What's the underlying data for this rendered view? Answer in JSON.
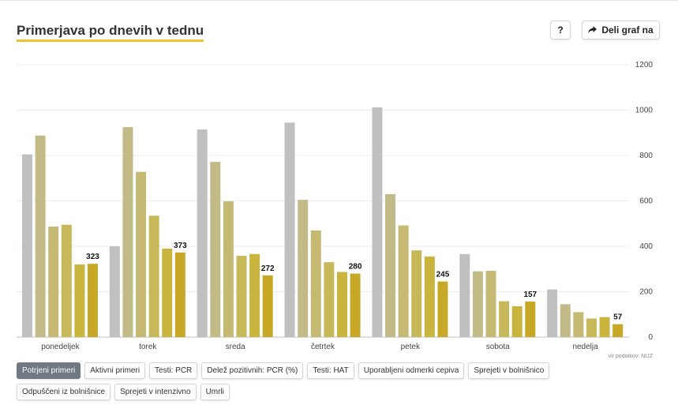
{
  "title": "Primerjava po dnevih v tednu",
  "buttons": {
    "help": "?",
    "share": "Deli graf na",
    "share_icon": "share-arrow-icon"
  },
  "source": "vir podatkov: NIJZ",
  "tabs": [
    "Potrjeni primeri",
    "Aktivni primeri",
    "Testi: PCR",
    "Delež pozitivnih: PCR (%)",
    "Testi: HAT",
    "Uporabljeni odmerki cepiva",
    "Sprejeti v bolnišnico",
    "Odpuščeni iz bolnišnice",
    "Sprejeti v intenzivno",
    "Umrli"
  ],
  "active_tab": 0,
  "chart_data": {
    "type": "bar",
    "categories": [
      "ponedeljek",
      "torek",
      "sreda",
      "četrtek",
      "petek",
      "sobota",
      "nedelja"
    ],
    "series_colors": [
      "#c0c0c0",
      "#c2bb88",
      "#c5b973",
      "#c7b85a",
      "#c9b43e",
      "#c7a927"
    ],
    "values": [
      [
        805,
        888,
        487,
        495,
        320,
        323
      ],
      [
        400,
        925,
        728,
        535,
        390,
        373
      ],
      [
        915,
        772,
        598,
        358,
        366,
        272
      ],
      [
        945,
        605,
        470,
        330,
        287,
        280
      ],
      [
        1012,
        630,
        492,
        382,
        355,
        245
      ],
      [
        366,
        290,
        292,
        158,
        136,
        157
      ],
      [
        210,
        145,
        110,
        82,
        88,
        57
      ]
    ],
    "labels": [
      "323",
      "373",
      "272",
      "280",
      "245",
      "157",
      "57"
    ],
    "ylim": [
      0,
      1200
    ],
    "yticks": [
      "0",
      "200",
      "400",
      "600",
      "800",
      "1000",
      "1200"
    ],
    "y_axis_position": "right",
    "grid": true
  }
}
